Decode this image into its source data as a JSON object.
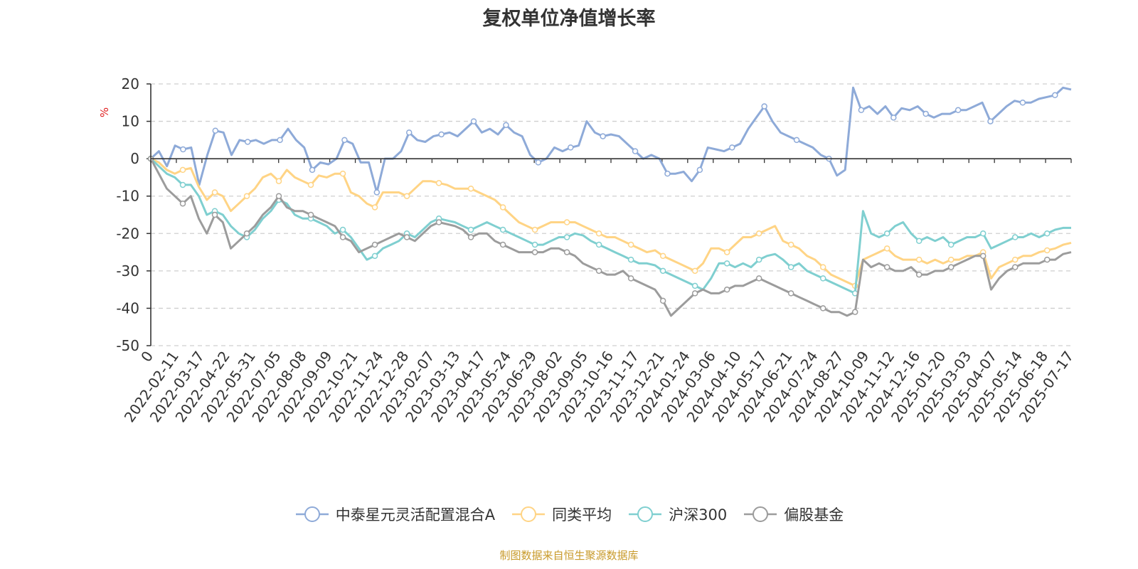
{
  "chart_data": {
    "type": "line",
    "title": "复权单位净值增长率",
    "ylabel": "%",
    "ylim": [
      -50,
      20
    ],
    "yticks": [
      20,
      10,
      0,
      -10,
      -20,
      -30,
      -40,
      -50
    ],
    "grid": true,
    "legend_position": "bottom",
    "x_tick_labels": [
      "0",
      "2022-02-11",
      "2022-03-17",
      "2022-04-22",
      "2022-05-31",
      "2022-07-05",
      "2022-08-08",
      "2022-09-09",
      "2022-10-21",
      "2022-11-24",
      "2022-12-28",
      "2023-02-07",
      "2023-03-13",
      "2023-04-17",
      "2023-05-24",
      "2023-06-29",
      "2023-08-02",
      "2023-09-05",
      "2023-10-16",
      "2023-11-17",
      "2023-12-21",
      "2024-01-24",
      "2024-03-06",
      "2024-04-10",
      "2024-05-17",
      "2024-06-21",
      "2024-07-24",
      "2024-08-27",
      "2024-10-09",
      "2024-11-12",
      "2024-12-16",
      "2025-01-20",
      "2025-03-03",
      "2025-04-07",
      "2025-05-14",
      "2025-06-18",
      "2025-07-17"
    ],
    "series": [
      {
        "name": "中泰星元灵活配置混合A",
        "color": "#8eaad8",
        "values": [
          0,
          2,
          -2,
          3.5,
          2.5,
          3,
          -7,
          1,
          7.5,
          7,
          1,
          5,
          4.5,
          5,
          4,
          5,
          5,
          8,
          5,
          3,
          -3,
          -1,
          -1.5,
          0,
          5,
          4,
          -1,
          -1,
          -9,
          0,
          0,
          2,
          7,
          5,
          4.5,
          6,
          6.5,
          7,
          6,
          8,
          10,
          7,
          8,
          6.5,
          9,
          7,
          6,
          1,
          -1,
          0,
          3,
          2,
          3,
          3.5,
          10,
          7,
          6,
          6.5,
          6,
          4,
          2,
          0,
          1,
          0,
          -4,
          -4,
          -3.5,
          -6,
          -3,
          3,
          2.5,
          2,
          3,
          4,
          8,
          11,
          14,
          10,
          7,
          6,
          5,
          4,
          3,
          1,
          0,
          -4.5,
          -3,
          19,
          13,
          14,
          12,
          14,
          11,
          13.5,
          13,
          14,
          12,
          11,
          12,
          12,
          13,
          13,
          14,
          15,
          10,
          12,
          14,
          15.5,
          15,
          15,
          16,
          16.5,
          17,
          19,
          18.5
        ]
      },
      {
        "name": "同类平均",
        "color": "#ffd485",
        "values": [
          0,
          -1,
          -3,
          -4,
          -3,
          -2.5,
          -7.5,
          -11,
          -9,
          -10,
          -14,
          -12,
          -10,
          -8,
          -5,
          -4,
          -6,
          -3,
          -5,
          -6,
          -7,
          -4.5,
          -5,
          -4,
          -4,
          -9,
          -10,
          -12,
          -13,
          -9,
          -9,
          -9,
          -10,
          -8,
          -6,
          -6,
          -6.5,
          -7,
          -8,
          -8,
          -8,
          -9,
          -10,
          -11,
          -13,
          -15,
          -17,
          -18,
          -19,
          -18,
          -17,
          -17,
          -17,
          -17,
          -18,
          -19,
          -20,
          -21,
          -21,
          -22,
          -23,
          -24,
          -25,
          -24.5,
          -26,
          -27,
          -28,
          -29,
          -30,
          -28,
          -24,
          -24,
          -25,
          -23,
          -21,
          -21,
          -20,
          -19,
          -18,
          -22,
          -23,
          -24,
          -26,
          -27,
          -29,
          -31,
          -32,
          -33,
          -34,
          -27,
          -26,
          -25,
          -24,
          -26,
          -27,
          -27,
          -27,
          -28,
          -27,
          -28,
          -27,
          -27,
          -26,
          -26,
          -25,
          -32,
          -29,
          -28,
          -27,
          -26,
          -26,
          -25,
          -24.5,
          -24,
          -23,
          -22.5
        ]
      },
      {
        "name": "沪深300",
        "color": "#7fcfd0",
        "values": [
          0,
          -2,
          -4,
          -5,
          -7,
          -7,
          -10,
          -15,
          -14,
          -15,
          -18,
          -20,
          -21,
          -19,
          -16,
          -14,
          -11,
          -12,
          -15,
          -16,
          -16,
          -17,
          -18,
          -20,
          -19,
          -21,
          -24,
          -27,
          -26,
          -24,
          -23,
          -22,
          -20,
          -21,
          -19,
          -17,
          -16,
          -16.5,
          -17,
          -18,
          -19,
          -18,
          -17,
          -18,
          -19,
          -20,
          -21,
          -22,
          -23,
          -23,
          -22,
          -21,
          -21,
          -20,
          -20.5,
          -22,
          -23,
          -24,
          -25,
          -26,
          -27,
          -28,
          -28,
          -28.5,
          -30,
          -31,
          -32,
          -33,
          -34,
          -35,
          -32,
          -28,
          -28,
          -29,
          -28,
          -29,
          -27,
          -26,
          -25.5,
          -27,
          -29,
          -28,
          -30,
          -31,
          -32,
          -33,
          -34,
          -35,
          -36,
          -14,
          -20,
          -21,
          -20,
          -18,
          -17,
          -20,
          -22,
          -21,
          -22,
          -21,
          -23,
          -22,
          -21,
          -21,
          -20,
          -24,
          -23,
          -22,
          -21,
          -21,
          -20,
          -21,
          -20,
          -19,
          -18.5,
          -18.5
        ]
      },
      {
        "name": "偏股基金",
        "color": "#9c9c9c",
        "values": [
          0,
          -4,
          -8,
          -10,
          -12,
          -10,
          -16,
          -20,
          -15,
          -17,
          -24,
          -22,
          -20,
          -18,
          -15,
          -13,
          -10,
          -13,
          -14,
          -14,
          -15,
          -16,
          -17,
          -18,
          -21,
          -22,
          -25,
          -24,
          -23,
          -22,
          -21,
          -20,
          -21,
          -22,
          -20,
          -18,
          -17,
          -17.5,
          -18,
          -19,
          -21,
          -20,
          -20,
          -22,
          -23,
          -24,
          -25,
          -25,
          -25,
          -25,
          -24,
          -24,
          -25,
          -26,
          -28,
          -29,
          -30,
          -31,
          -31,
          -30,
          -32,
          -33,
          -34,
          -35,
          -38,
          -42,
          -40,
          -38,
          -36,
          -35,
          -36,
          -36,
          -35,
          -34,
          -34,
          -33,
          -32,
          -33,
          -34,
          -35,
          -36,
          -37,
          -38,
          -39,
          -40,
          -41,
          -41,
          -42,
          -41,
          -27,
          -29,
          -28,
          -29,
          -30,
          -30,
          -29,
          -31,
          -31,
          -30,
          -30,
          -29,
          -28,
          -27,
          -26,
          -26,
          -35,
          -32,
          -30,
          -29,
          -28,
          -28,
          -28,
          -27,
          -27,
          -25.5,
          -25
        ]
      }
    ]
  },
  "source_note": "制图数据来自恒生聚源数据库"
}
